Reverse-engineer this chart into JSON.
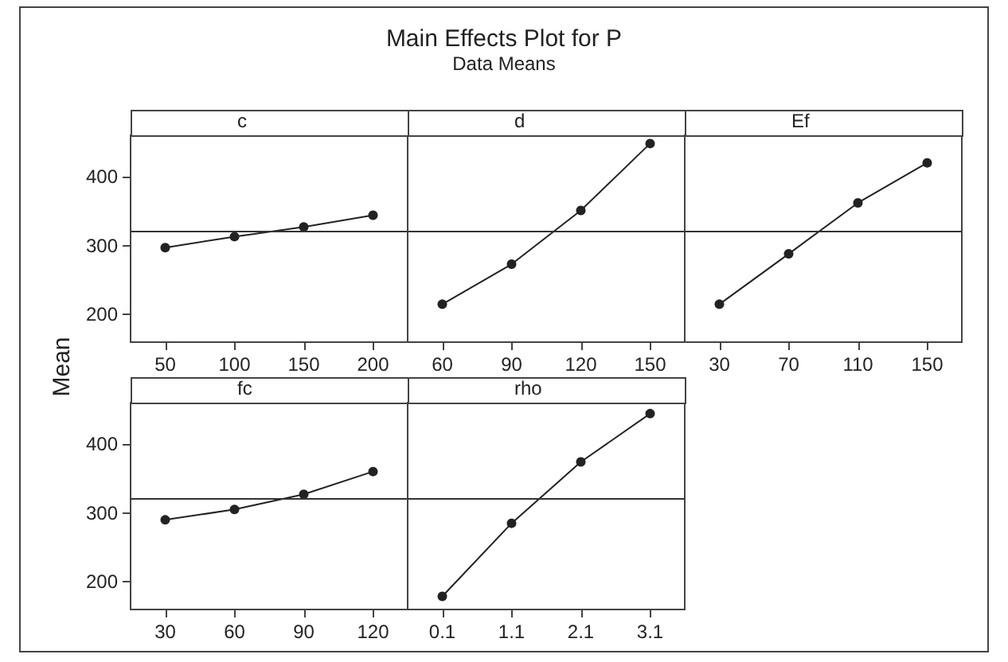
{
  "chart_data": [
    {
      "type": "line",
      "ylabel": "Mean",
      "xlabel": "c",
      "categories": [
        "50",
        "100",
        "150",
        "200"
      ],
      "values": [
        297,
        313,
        327,
        344
      ],
      "color": "#222222",
      "ylim": [
        160,
        460
      ],
      "yticks": [
        200,
        300,
        400
      ],
      "ref_lines": [
        {
          "axis": "y",
          "value": 320
        }
      ],
      "marker": "circle"
    },
    {
      "type": "line",
      "title": "Main Effects Plot for P",
      "subtitle": "Data Means",
      "xlabel": "d",
      "categories": [
        "60",
        "90",
        "120",
        "150"
      ],
      "values": [
        215,
        273,
        351,
        448
      ],
      "color": "#222222",
      "ylim": [
        160,
        460
      ],
      "yticks": [
        200,
        300,
        400
      ],
      "ref_lines": [
        {
          "axis": "y",
          "value": 320
        }
      ],
      "marker": "circle",
      "tick_labels": "x"
    },
    {
      "type": "line",
      "xlabel": "Ef",
      "categories": [
        "30",
        "70",
        "110",
        "150"
      ],
      "values": [
        215,
        288,
        362,
        420
      ],
      "color": "#222222",
      "ylim": [
        160,
        460
      ],
      "yticks": [
        200,
        300,
        400
      ],
      "ref_lines": [
        {
          "axis": "y",
          "value": 320
        }
      ],
      "marker": "circle",
      "tick_labels": "x"
    },
    {
      "type": "line",
      "xlabel": "fc",
      "categories": [
        "30",
        "60",
        "90",
        "120"
      ],
      "values": [
        290,
        305,
        327,
        360
      ],
      "color": "#222222",
      "ylim": [
        160,
        460
      ],
      "yticks": [
        200,
        300,
        400
      ],
      "ref_lines": [
        {
          "axis": "y",
          "value": 320
        }
      ],
      "marker": "circle"
    },
    {
      "type": "line",
      "xlabel": "rho",
      "categories": [
        "0.1",
        "1.1",
        "2.1",
        "3.1"
      ],
      "values": [
        179,
        285,
        374,
        444
      ],
      "color": "#222222",
      "ylim": [
        160,
        460
      ],
      "yticks": [
        200,
        300,
        400
      ],
      "ref_lines": [
        {
          "axis": "y",
          "value": 320
        }
      ],
      "marker": "circle",
      "tick_labels": "x"
    }
  ]
}
